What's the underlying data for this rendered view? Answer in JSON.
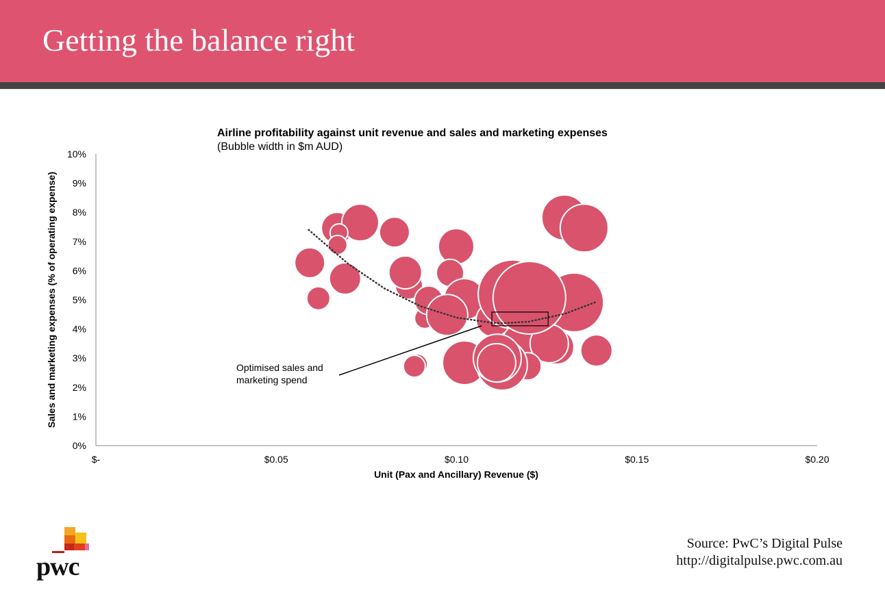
{
  "header": {
    "title": "Getting the balance right"
  },
  "colors": {
    "header": "#DE5470",
    "bar": "#444444",
    "bubble": "#D9536C"
  },
  "chart_data": {
    "type": "bubble",
    "title": "Airline profitability against unit revenue and sales and marketing expenses",
    "subtitle": "(Bubble width in $m AUD)",
    "xlabel": "Unit (Pax and Ancillary) Revenue ($)",
    "ylabel": "Sales and marketing expenses (% of operating expense)",
    "xlim": [
      0,
      0.2
    ],
    "ylim": [
      0,
      10
    ],
    "xticks": [
      {
        "v": 0,
        "label": "$-"
      },
      {
        "v": 0.05,
        "label": "$0.05"
      },
      {
        "v": 0.1,
        "label": "$0.10"
      },
      {
        "v": 0.15,
        "label": "$0.15"
      },
      {
        "v": 0.2,
        "label": "$0.20"
      }
    ],
    "yticks": [
      {
        "v": 0,
        "label": "0%"
      },
      {
        "v": 1,
        "label": "1%"
      },
      {
        "v": 2,
        "label": "2%"
      },
      {
        "v": 3,
        "label": "3%"
      },
      {
        "v": 4,
        "label": "4%"
      },
      {
        "v": 5,
        "label": "5%"
      },
      {
        "v": 6,
        "label": "6%"
      },
      {
        "v": 7,
        "label": "7%"
      },
      {
        "v": 8,
        "label": "8%"
      },
      {
        "v": 9,
        "label": "9%"
      },
      {
        "v": 10,
        "label": "10%"
      }
    ],
    "grid": false,
    "bubbles": [
      {
        "x": 0.0669,
        "y": 7.46,
        "size": 2.3
      },
      {
        "x": 0.0733,
        "y": 7.65,
        "size": 2.7
      },
      {
        "x": 0.0674,
        "y": 7.3,
        "size": 1.3
      },
      {
        "x": 0.067,
        "y": 6.88,
        "size": 1.4
      },
      {
        "x": 0.0828,
        "y": 7.32,
        "size": 2.2
      },
      {
        "x": 0.0593,
        "y": 6.27,
        "size": 2.2
      },
      {
        "x": 0.0691,
        "y": 5.73,
        "size": 2.3
      },
      {
        "x": 0.0617,
        "y": 5.05,
        "size": 1.7
      },
      {
        "x": 0.0999,
        "y": 6.83,
        "size": 2.6
      },
      {
        "x": 0.0868,
        "y": 5.49,
        "size": 2.0
      },
      {
        "x": 0.0858,
        "y": 5.94,
        "size": 2.4
      },
      {
        "x": 0.0982,
        "y": 5.92,
        "size": 2.0
      },
      {
        "x": 0.0912,
        "y": 4.37,
        "size": 1.5
      },
      {
        "x": 0.0923,
        "y": 4.98,
        "size": 2.1
      },
      {
        "x": 0.1022,
        "y": 5.02,
        "size": 3.0
      },
      {
        "x": 0.0974,
        "y": 4.48,
        "size": 3.0
      },
      {
        "x": 0.1326,
        "y": 4.91,
        "size": 4.3
      },
      {
        "x": 0.1299,
        "y": 7.82,
        "size": 3.3
      },
      {
        "x": 0.1354,
        "y": 7.46,
        "size": 3.5
      },
      {
        "x": 0.1183,
        "y": 3.62,
        "size": 2.8
      },
      {
        "x": 0.1278,
        "y": 3.38,
        "size": 2.5
      },
      {
        "x": 0.1257,
        "y": 3.5,
        "size": 2.8
      },
      {
        "x": 0.1388,
        "y": 3.26,
        "size": 2.3
      },
      {
        "x": 0.1102,
        "y": 4.32,
        "size": 2.5
      },
      {
        "x": 0.1155,
        "y": 5.19,
        "size": 5.0
      },
      {
        "x": 0.1202,
        "y": 5.07,
        "size": 5.3
      },
      {
        "x": 0.1197,
        "y": 2.72,
        "size": 2.0
      },
      {
        "x": 0.1022,
        "y": 2.84,
        "size": 3.2
      },
      {
        "x": 0.1126,
        "y": 2.77,
        "size": 3.7
      },
      {
        "x": 0.1113,
        "y": 3.0,
        "size": 3.5
      },
      {
        "x": 0.1111,
        "y": 2.84,
        "size": 2.8
      },
      {
        "x": 0.0891,
        "y": 2.79,
        "size": 1.5
      },
      {
        "x": 0.0883,
        "y": 2.72,
        "size": 1.6
      }
    ],
    "trendline": {
      "style": "dotted",
      "x": [
        0.059,
        0.07,
        0.08,
        0.09,
        0.1,
        0.11,
        0.113,
        0.12,
        0.13,
        0.139
      ],
      "y": [
        7.4,
        6.23,
        5.39,
        4.78,
        4.39,
        4.21,
        4.2,
        4.25,
        4.52,
        4.94
      ]
    },
    "highlight_box": {
      "x": [
        0.1098,
        0.1254
      ],
      "y": [
        4.11,
        4.58
      ]
    },
    "annotation": {
      "line1": "Optimised sales and",
      "line2": "marketing spend"
    }
  },
  "footer": {
    "source": "Source: PwC’s Digital Pulse",
    "url": "http://digitalpulse.pwc.com.au",
    "logo_text": "pwc"
  }
}
